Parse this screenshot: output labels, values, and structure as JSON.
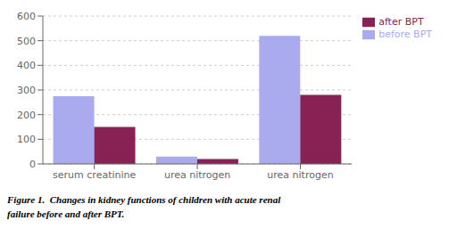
{
  "chart_data": {
    "type": "bar",
    "categories": [
      "serum creatinine",
      "urea nitrogen",
      "urea nitrogen"
    ],
    "series": [
      {
        "name": "before BPT",
        "color": "#aaaaee",
        "values": [
          275,
          30,
          520
        ]
      },
      {
        "name": "after BPT",
        "color": "#882255",
        "values": [
          150,
          20,
          280
        ]
      }
    ],
    "ylim": [
      0,
      600
    ],
    "yticks": [
      0,
      100,
      200,
      300,
      400,
      500,
      600
    ],
    "grid": true,
    "legend": "right",
    "annotations": [
      "Figure 1.  Changes in kidney functions of children with acute renal",
      "failure before and after BPT."
    ]
  }
}
